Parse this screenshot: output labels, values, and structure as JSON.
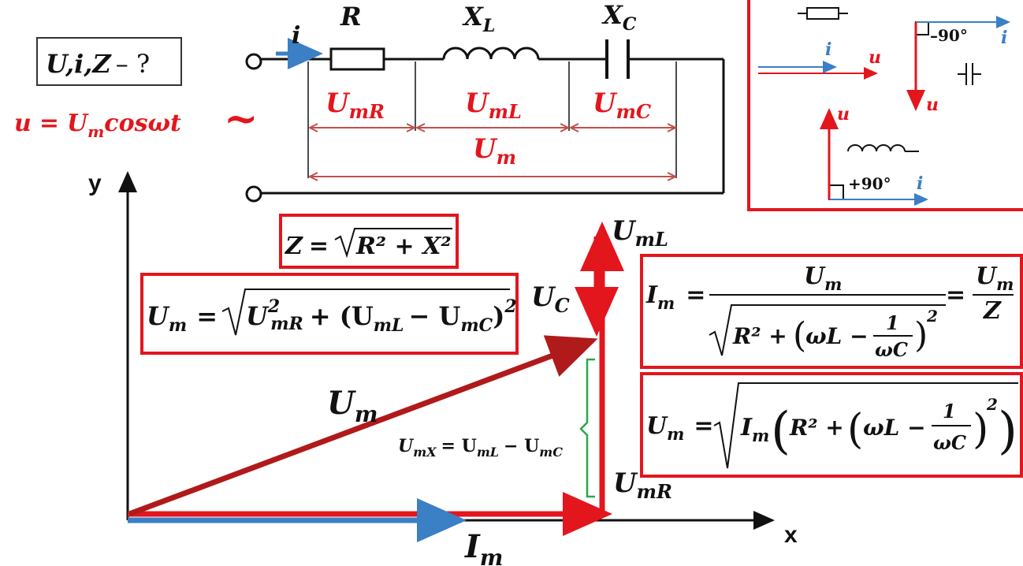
{
  "question": {
    "U": "U",
    "i": "i",
    "Z": "Z",
    "suffix": "– ?"
  },
  "source": {
    "u": "u",
    "eq": "=",
    "Um": "U",
    "m": "m",
    "rest": "cosωt",
    "tilde": "~"
  },
  "circuit": {
    "current": "i",
    "R": "R",
    "XL": "X",
    "XL_sub": "L",
    "XC": "X",
    "XC_sub": "C",
    "UmR": "U",
    "UmR_sub": "mR",
    "UmL": "U",
    "UmL_sub": "mL",
    "UmC": "U",
    "UmC_sub": "mC",
    "Um": "U",
    "Um_sub": "m"
  },
  "inset": {
    "i_r": "i",
    "u_r": "u",
    "i_c": "i",
    "u_c": "u",
    "c_angle": "–90°",
    "u_l": "u",
    "i_l": "i",
    "l_angle": "+90°"
  },
  "formulas": {
    "Z_lhs": "Z",
    "Z_rhs": "R² + X²",
    "Um_lhs": "U",
    "Um_lhs_sub": "m",
    "Um_rhs_a": "U",
    "Um_rhs_a_sup": "2",
    "Um_rhs_a_sub": "mR",
    "Um_rhs_b": "+ (U",
    "Um_rhs_b_sub": "mL",
    "Um_rhs_c": "− U",
    "Um_rhs_c_sub": "mC",
    "Um_rhs_close": ")",
    "Um_rhs_close_sup": "2",
    "Im_lhs": "I",
    "Im_lhs_sub": "m",
    "Im_num": "U",
    "Im_num_sub": "m",
    "Im_den_a": "R² +",
    "Im_den_b": "ωL −",
    "Im_den_frac_num": "1",
    "Im_den_frac_den": "ωC",
    "Im_den_sup": "2",
    "Im_eq2_num": "U",
    "Im_eq2_num_sub": "m",
    "Im_eq2_den": "Z",
    "Um2_lhs": "U",
    "Um2_lhs_sub": "m",
    "Um2_I": "I",
    "Um2_I_sub": "m",
    "Um2_a": "R² +",
    "Um2_b": "ωL −",
    "Um2_frac_num": "1",
    "Um2_frac_den": "ωC",
    "Um2_sup": "2",
    "eq": "="
  },
  "phasor": {
    "y": "y",
    "x": "x",
    "Um": "U",
    "Um_sub": "m",
    "Im": "I",
    "Im_sub": "m",
    "UmL": "U",
    "UmL_sub": "mL",
    "UmC": "U",
    "UmC_sub": "C",
    "UmR": "U",
    "UmR_sub": "mR",
    "UmX": "U",
    "UmX_sub": "mX",
    "UmX_eq": "= U",
    "UmX_L": "mL",
    "UmX_minus": "− U",
    "UmX_C": "mC"
  },
  "colors": {
    "red": "#e3161d",
    "darkred": "#b11a1a",
    "blue": "#3b7fc4",
    "green": "#2aa84a",
    "wire": "#111111",
    "dim": "#c0504d"
  }
}
